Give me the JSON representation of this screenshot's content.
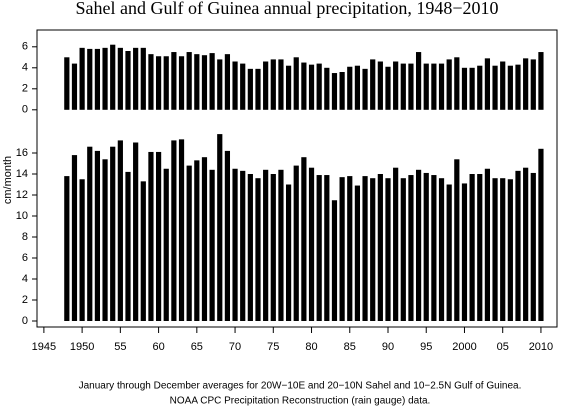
{
  "title": "Sahel and Gulf of Guinea annual precipitation, 1948−2010",
  "y_label": "cm/month",
  "caption": [
    "January through December averages for 20W−10E and 20−10N Sahel and 10−2.5N Gulf of Guinea.",
    "NOAA CPC Precipitation Reconstruction (rain gauge) data."
  ],
  "chart_data": [
    {
      "type": "bar",
      "color": "#000000",
      "x": [
        1948,
        1949,
        1950,
        1951,
        1952,
        1953,
        1954,
        1955,
        1956,
        1957,
        1958,
        1959,
        1960,
        1961,
        1962,
        1963,
        1964,
        1965,
        1966,
        1967,
        1968,
        1969,
        1970,
        1971,
        1972,
        1973,
        1974,
        1975,
        1976,
        1977,
        1978,
        1979,
        1980,
        1981,
        1982,
        1983,
        1984,
        1985,
        1986,
        1987,
        1988,
        1989,
        1990,
        1991,
        1992,
        1993,
        1994,
        1995,
        1996,
        1997,
        1998,
        1999,
        2000,
        2001,
        2002,
        2003,
        2004,
        2005,
        2006,
        2007,
        2008,
        2009,
        2010
      ],
      "values": [
        5.0,
        4.4,
        5.9,
        5.8,
        5.8,
        5.9,
        6.2,
        5.9,
        5.6,
        5.9,
        5.9,
        5.3,
        5.1,
        5.1,
        5.5,
        5.1,
        5.5,
        5.3,
        5.2,
        5.4,
        4.8,
        5.3,
        4.6,
        4.4,
        3.9,
        3.9,
        4.6,
        4.8,
        4.8,
        4.2,
        5.0,
        4.5,
        4.3,
        4.4,
        4.0,
        3.5,
        3.6,
        4.1,
        4.2,
        3.9,
        4.8,
        4.6,
        4.1,
        4.6,
        4.4,
        4.4,
        5.5,
        4.4,
        4.4,
        4.4,
        4.8,
        5.0,
        4.0,
        4.0,
        4.2,
        4.9,
        4.2,
        4.6,
        4.2,
        4.3,
        4.9,
        4.8,
        5.5
      ],
      "xlim": [
        1944.1,
        2012.1
      ],
      "ylim": [
        -0.6,
        7.6
      ],
      "yticks": [
        0,
        2,
        4,
        6
      ]
    },
    {
      "type": "bar",
      "color": "#000000",
      "x": [
        1948,
        1949,
        1950,
        1951,
        1952,
        1953,
        1954,
        1955,
        1956,
        1957,
        1958,
        1959,
        1960,
        1961,
        1962,
        1963,
        1964,
        1965,
        1966,
        1967,
        1968,
        1969,
        1970,
        1971,
        1972,
        1973,
        1974,
        1975,
        1976,
        1977,
        1978,
        1979,
        1980,
        1981,
        1982,
        1983,
        1984,
        1985,
        1986,
        1987,
        1988,
        1989,
        1990,
        1991,
        1992,
        1993,
        1994,
        1995,
        1996,
        1997,
        1998,
        1999,
        2000,
        2001,
        2002,
        2003,
        2004,
        2005,
        2006,
        2007,
        2008,
        2009,
        2010
      ],
      "values": [
        13.8,
        15.8,
        13.5,
        16.6,
        16.2,
        15.4,
        16.6,
        17.2,
        14.2,
        17.0,
        13.3,
        16.1,
        16.1,
        14.5,
        17.2,
        17.3,
        14.8,
        15.3,
        15.6,
        14.4,
        17.8,
        16.2,
        14.5,
        14.3,
        14.0,
        13.6,
        14.4,
        14.0,
        14.4,
        13.0,
        14.8,
        15.6,
        14.6,
        13.9,
        13.9,
        11.5,
        13.7,
        13.8,
        12.9,
        13.8,
        13.6,
        14.0,
        13.6,
        14.6,
        13.6,
        13.9,
        14.4,
        14.1,
        13.9,
        13.6,
        13.0,
        15.4,
        13.1,
        14.0,
        14.0,
        14.5,
        13.6,
        13.6,
        13.5,
        14.3,
        14.6,
        14.1,
        16.4
      ],
      "xlim": [
        1944.1,
        2012.1
      ],
      "ylim": [
        -0.6,
        18
      ],
      "yticks": [
        0,
        2,
        4,
        6,
        8,
        10,
        12,
        14,
        16
      ],
      "xticks": [
        1945,
        1950,
        {
          "value": 1955,
          "label": "55"
        },
        {
          "value": 1960,
          "label": "60"
        },
        {
          "value": 1965,
          "label": "65"
        },
        {
          "value": 1970,
          "label": "70"
        },
        {
          "value": 1975,
          "label": "75"
        },
        {
          "value": 1980,
          "label": "80"
        },
        {
          "value": 1985,
          "label": "85"
        },
        {
          "value": 1990,
          "label": "90"
        },
        {
          "value": 1995,
          "label": "95"
        },
        2000,
        {
          "value": 2005,
          "label": "05"
        },
        2010
      ]
    }
  ]
}
